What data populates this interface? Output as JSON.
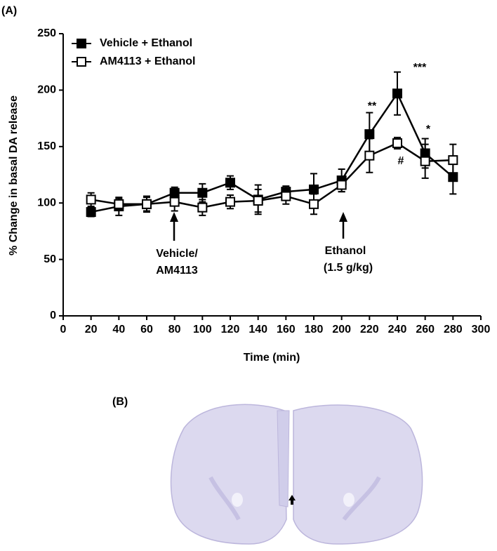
{
  "chart_data": {
    "type": "line",
    "panel_label": "(A)",
    "x_label": "Time (min)",
    "y_label": "% Change in basal DA release",
    "x": [
      20,
      40,
      60,
      80,
      100,
      120,
      140,
      160,
      180,
      200,
      220,
      240,
      260,
      280
    ],
    "series": [
      {
        "name": "Vehicle + Ethanol",
        "color": "#000000",
        "marker": "filled-square",
        "values": [
          92,
          97,
          99,
          109,
          109,
          118,
          103,
          110,
          112,
          120,
          161,
          197,
          144,
          123
        ],
        "errors": [
          4,
          8,
          6,
          5,
          8,
          6,
          13,
          5,
          14,
          10,
          19,
          19,
          13,
          15
        ]
      },
      {
        "name": "AM4113 + Ethanol",
        "color": "#000000",
        "marker": "open-square",
        "values": [
          103,
          99,
          99,
          101,
          96,
          101,
          102,
          106,
          99,
          116,
          142,
          153,
          137,
          138
        ],
        "errors": [
          6,
          5,
          7,
          8,
          7,
          6,
          10,
          7,
          9,
          6,
          15,
          5,
          15,
          14
        ]
      }
    ],
    "xlim": [
      0,
      300
    ],
    "ylim": [
      0,
      250
    ],
    "xticks": [
      0,
      20,
      40,
      60,
      80,
      100,
      120,
      140,
      160,
      180,
      200,
      220,
      240,
      260,
      280,
      300
    ],
    "yticks": [
      0,
      50,
      100,
      150,
      200,
      250
    ],
    "grid": false,
    "legend": "upper left",
    "annotations": [
      "**",
      "***",
      "*",
      "#",
      "Vehicle/",
      "AM4113",
      "Ethanol",
      "(1.5 g/kg)"
    ]
  },
  "panel_b": {
    "label": "(B)"
  }
}
